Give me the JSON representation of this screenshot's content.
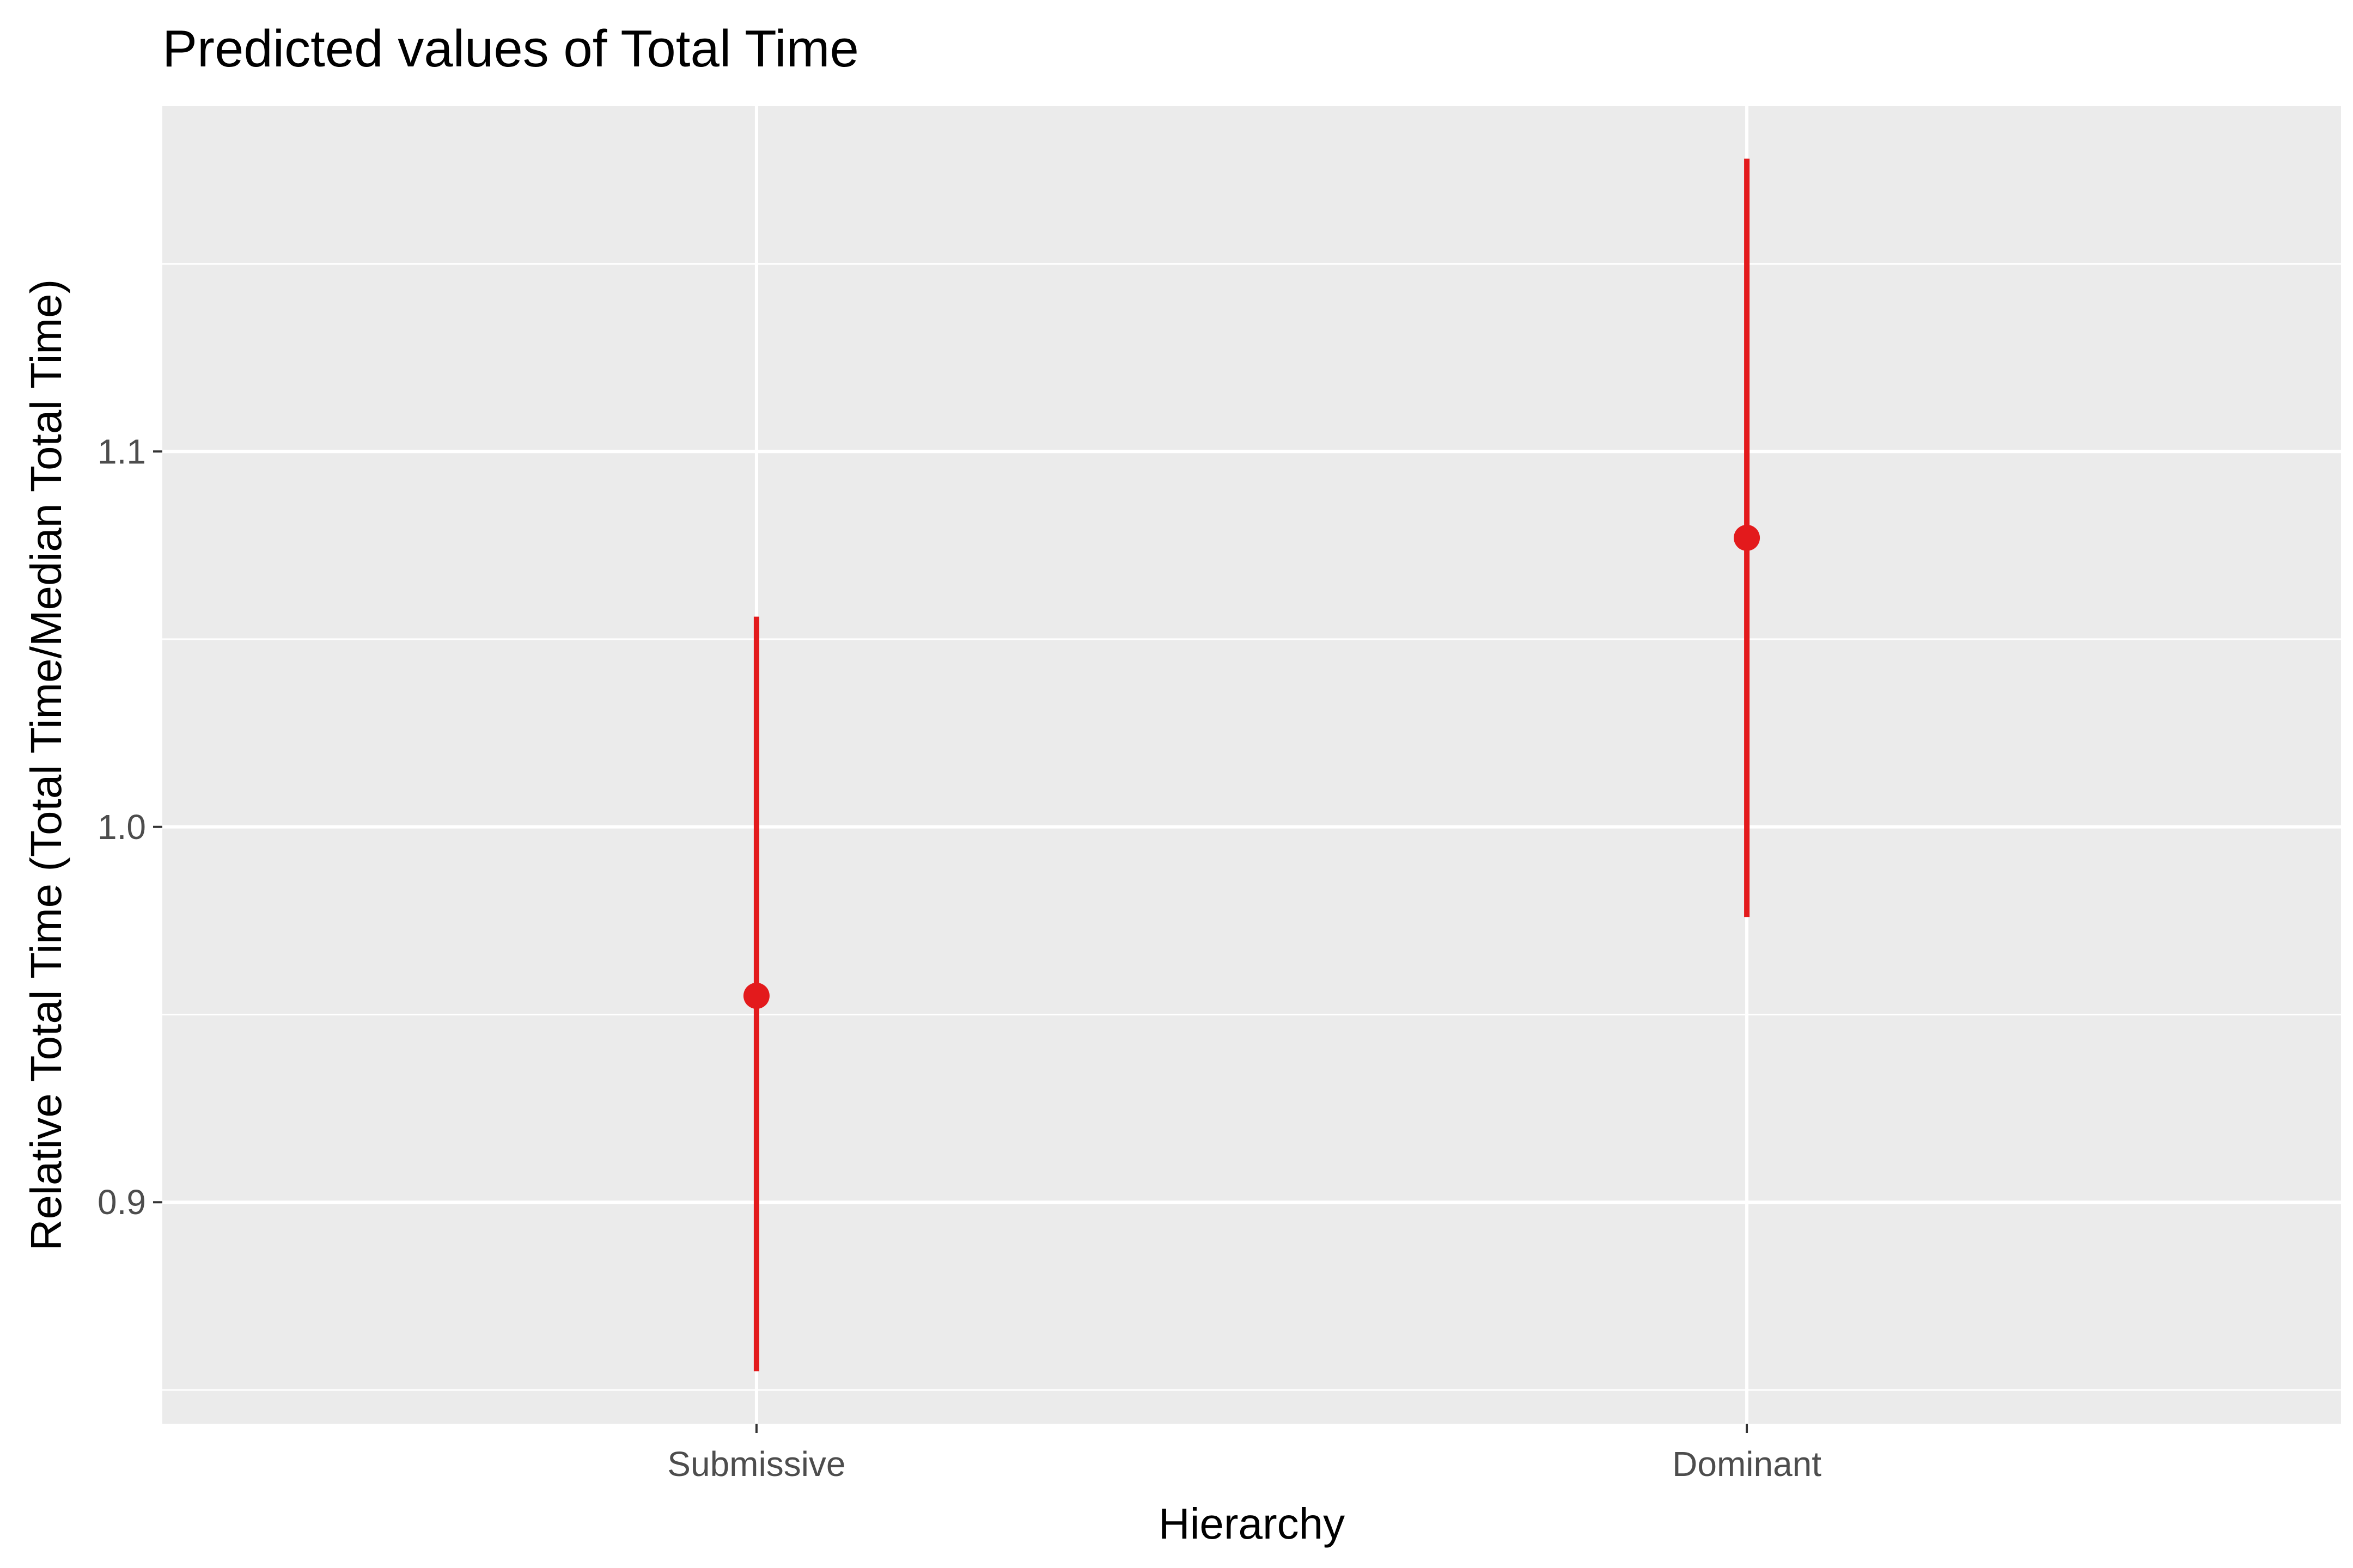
{
  "chart_data": {
    "type": "scatter",
    "title": "Predicted values of Total Time",
    "xlabel": "Hierarchy",
    "ylabel": "Relative Total Time (Total Time/Median Total Time)",
    "categories": [
      "Submissive",
      "Dominant"
    ],
    "series": [
      {
        "values": [
          0.955,
          1.077
        ],
        "ci_low": [
          0.855,
          0.976
        ],
        "ci_high": [
          1.056,
          1.178
        ]
      }
    ],
    "ylim": [
      0.841,
      1.192
    ],
    "yticks": [
      0.9,
      1.0,
      1.1
    ],
    "ytick_labels": [
      "0.9",
      "1.0",
      "1.1"
    ],
    "y_minor_ticks": [
      0.85,
      0.95,
      1.05,
      1.15
    ],
    "grid": true,
    "legend": "none",
    "colors": {
      "series": "#e31a1c",
      "panel_background": "#ebebeb",
      "grid": "#ffffff",
      "tick": "#333333"
    }
  }
}
